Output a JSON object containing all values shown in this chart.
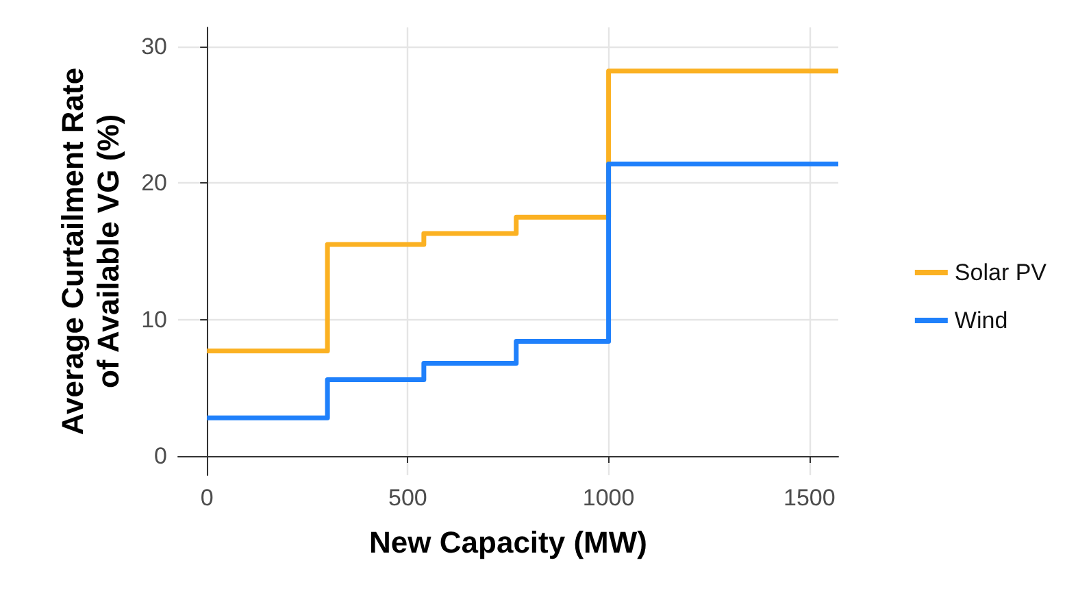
{
  "chart_data": {
    "type": "step",
    "xlabel": "New Capacity (MW)",
    "ylabel": "Average Curtailment Rate\nof Available VG (%)",
    "x": [
      0,
      300,
      540,
      770,
      1000,
      1572
    ],
    "series": [
      {
        "name": "Solar PV",
        "color": "#fbb122",
        "values": [
          7.7,
          15.5,
          16.3,
          17.5,
          28.2,
          28.2
        ]
      },
      {
        "name": "Wind",
        "color": "#1f80fb",
        "values": [
          2.8,
          5.6,
          6.8,
          8.4,
          21.4,
          21.4
        ]
      }
    ],
    "xlim": [
      -72,
      1572
    ],
    "xticks": [
      0,
      500,
      1000,
      1500
    ],
    "ylim": [
      -1.4,
      31.4
    ],
    "yticks": [
      0,
      10,
      20,
      30
    ],
    "grid": true,
    "legend": "right",
    "line_style": "solid",
    "marker": "none"
  }
}
